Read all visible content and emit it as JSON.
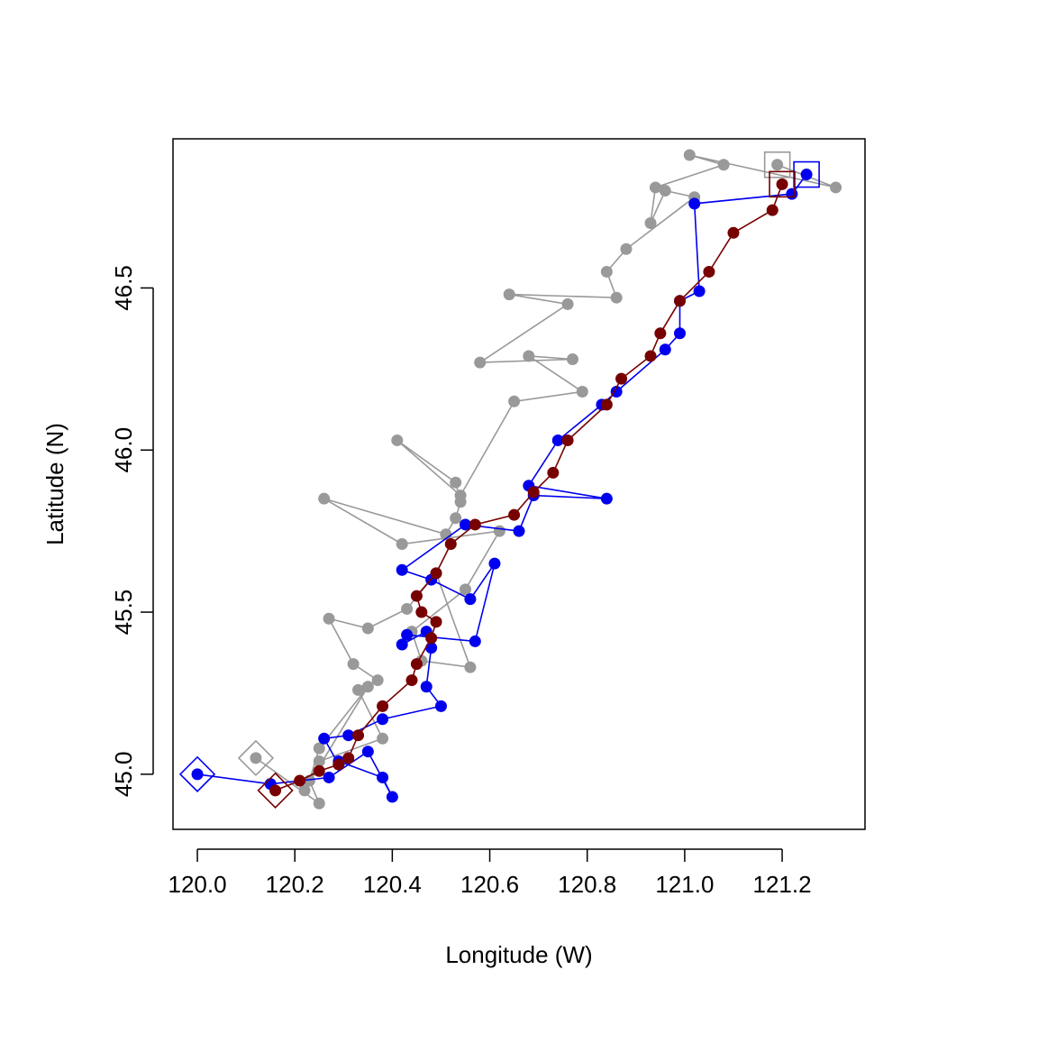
{
  "chart_data": {
    "type": "line",
    "title": "",
    "xlabel": "Longitude (W)",
    "ylabel": "Latitude (N)",
    "xlim": [
      119.95,
      121.37
    ],
    "ylim": [
      44.83,
      46.96
    ],
    "x_ticks": [
      120.0,
      120.2,
      120.4,
      120.6,
      120.8,
      121.0,
      121.2
    ],
    "x_tick_labels": [
      "120.0",
      "120.2",
      "120.4",
      "120.6",
      "120.8",
      "121.0",
      "121.2"
    ],
    "y_ticks": [
      45.0,
      45.5,
      46.0,
      46.5
    ],
    "y_tick_labels": [
      "45.0",
      "45.5",
      "46.0",
      "46.5"
    ],
    "grid": false,
    "legend": "none",
    "series": [
      {
        "color": "#999999",
        "start_marker": "diamond",
        "end_marker": "square",
        "x": [
          120.12,
          120.25,
          120.23,
          120.25,
          120.35,
          120.22,
          120.25,
          120.38,
          120.33,
          120.37,
          120.32,
          120.27,
          120.35,
          120.43,
          120.49,
          120.56,
          120.46,
          120.44,
          120.55,
          120.62,
          120.42,
          120.26,
          120.51,
          120.53,
          120.54,
          120.53,
          120.41,
          120.54,
          120.65,
          120.79,
          120.68,
          120.77,
          120.58,
          120.76,
          120.64,
          120.86,
          120.84,
          120.88,
          121.02,
          120.96,
          120.93,
          120.94,
          121.08,
          121.01,
          121.31,
          121.19
        ],
        "y": [
          45.05,
          44.91,
          44.98,
          45.08,
          45.27,
          44.95,
          45.04,
          45.11,
          45.26,
          45.29,
          45.34,
          45.48,
          45.45,
          45.51,
          45.62,
          45.33,
          45.35,
          45.44,
          45.57,
          45.75,
          45.71,
          45.85,
          45.74,
          45.79,
          45.84,
          45.9,
          46.03,
          45.86,
          46.15,
          46.18,
          46.29,
          46.28,
          46.27,
          46.45,
          46.48,
          46.47,
          46.55,
          46.62,
          46.78,
          46.8,
          46.7,
          46.81,
          46.88,
          46.91,
          46.81,
          46.88
        ]
      },
      {
        "color": "#0000ee",
        "start_marker": "diamond",
        "end_marker": "square",
        "x": [
          120.0,
          120.15,
          120.27,
          120.35,
          120.4,
          120.38,
          120.29,
          120.29,
          120.26,
          120.31,
          120.38,
          120.5,
          120.47,
          120.48,
          120.47,
          120.42,
          120.43,
          120.57,
          120.61,
          120.56,
          120.48,
          120.42,
          120.55,
          120.66,
          120.69,
          120.84,
          120.68,
          120.74,
          120.83,
          120.86,
          120.96,
          120.99,
          120.99,
          121.03,
          121.02,
          121.22,
          121.25
        ],
        "y": [
          45.0,
          44.97,
          44.99,
          45.07,
          44.93,
          44.99,
          45.04,
          45.03,
          45.11,
          45.12,
          45.17,
          45.21,
          45.27,
          45.39,
          45.44,
          45.4,
          45.43,
          45.41,
          45.65,
          45.54,
          45.6,
          45.63,
          45.77,
          45.75,
          45.86,
          45.85,
          45.89,
          46.03,
          46.14,
          46.18,
          46.31,
          46.36,
          46.46,
          46.49,
          46.76,
          46.79,
          46.85
        ]
      },
      {
        "color": "#770000",
        "start_marker": "diamond",
        "end_marker": "square",
        "x": [
          120.16,
          120.21,
          120.25,
          120.29,
          120.31,
          120.33,
          120.38,
          120.44,
          120.45,
          120.48,
          120.49,
          120.46,
          120.45,
          120.49,
          120.52,
          120.57,
          120.65,
          120.69,
          120.73,
          120.76,
          120.84,
          120.87,
          120.93,
          120.95,
          120.99,
          121.05,
          121.1,
          121.18,
          121.2
        ],
        "y": [
          44.95,
          44.98,
          45.01,
          45.03,
          45.05,
          45.12,
          45.21,
          45.29,
          45.34,
          45.42,
          45.47,
          45.5,
          45.55,
          45.62,
          45.71,
          45.77,
          45.8,
          45.87,
          45.93,
          46.03,
          46.14,
          46.22,
          46.29,
          46.36,
          46.46,
          46.55,
          46.67,
          46.74,
          46.82
        ]
      }
    ]
  }
}
